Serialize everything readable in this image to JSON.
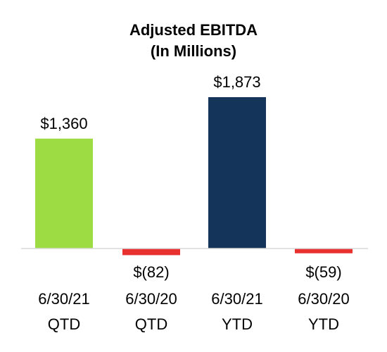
{
  "chart_data": {
    "type": "bar",
    "title": "Adjusted EBITDA",
    "subtitle": "(In Millions)",
    "categories": [
      [
        "6/30/21",
        "QTD"
      ],
      [
        "6/30/20",
        "QTD"
      ],
      [
        "6/30/21",
        "YTD"
      ],
      [
        "6/30/20",
        "YTD"
      ]
    ],
    "values": [
      1360,
      -82,
      1873,
      -59
    ],
    "data_labels": [
      "$1,360",
      "$(82)",
      "$1,873",
      "$(59)"
    ],
    "colors": [
      "#9ddc43",
      "#e8302e",
      "#14345a",
      "#e8302e"
    ],
    "axis_color": "#d9d9d9",
    "grid": false,
    "legend": "none"
  }
}
